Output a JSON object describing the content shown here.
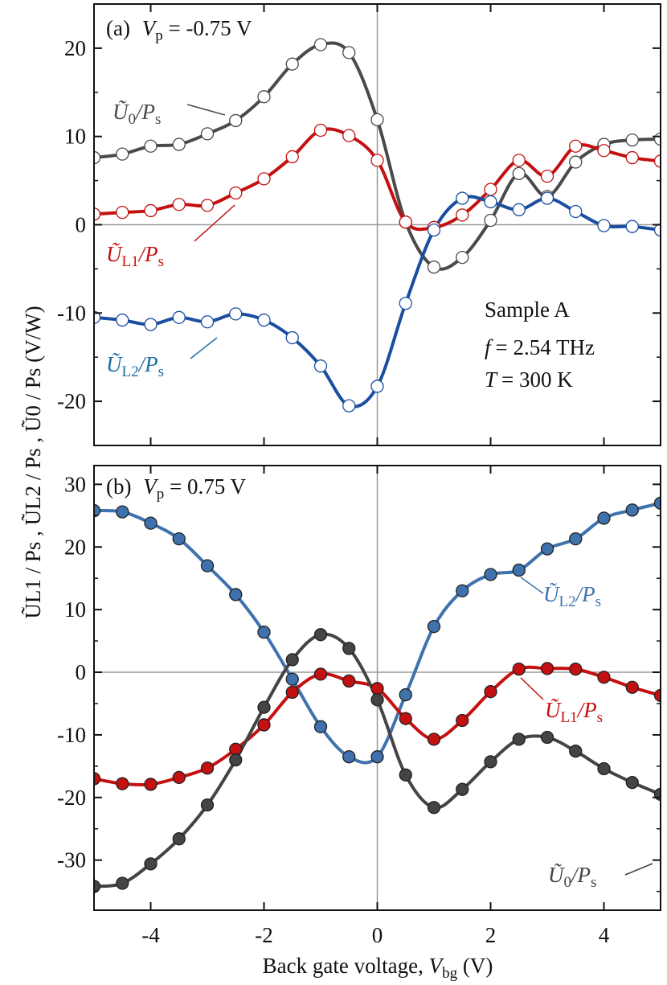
{
  "chart_data": [
    {
      "type": "line",
      "panel_label": "(a)",
      "title_var": "V",
      "title_sub": "p",
      "title_value": " = -0.75 V",
      "xlim": [
        -5,
        5
      ],
      "ylim": [
        -25,
        25
      ],
      "xticks": [
        -4,
        -2,
        0,
        2,
        4
      ],
      "yticks": [
        -20,
        -10,
        0,
        10,
        20
      ],
      "ytick_labels": [
        "-20",
        "-10",
        "0",
        "10",
        "20"
      ],
      "marker_fill": "#ffffff",
      "annotation_lines": [
        "Sample A",
        "= 2.54 THz",
        "= 300 K"
      ],
      "annotation_vars": [
        "",
        "f",
        "T"
      ],
      "series": [
        {
          "name": "Ũ0/Ps",
          "label_main": "Ũ",
          "label_sub": "0",
          "label_den": "/P",
          "label_den_sub": "s",
          "color": "#4a4a4a",
          "x": [
            -5,
            -4.5,
            -4,
            -3.5,
            -3,
            -2.5,
            -2,
            -1.5,
            -1,
            -0.5,
            0,
            0.5,
            1,
            1.5,
            2,
            2.5,
            3,
            3.5,
            4,
            4.5,
            5
          ],
          "y": [
            7.6,
            8.0,
            8.9,
            9.1,
            10.3,
            11.8,
            14.5,
            18.2,
            20.4,
            19.5,
            11.9,
            0.3,
            -4.8,
            -3.7,
            0.5,
            5.8,
            3.2,
            7.1,
            9.1,
            9.6,
            9.7
          ]
        },
        {
          "name": "ŨL1/Ps",
          "label_main": "Ũ",
          "label_sub": "L1",
          "label_den": "/P",
          "label_den_sub": "s",
          "color": "#c41010",
          "x": [
            -5,
            -4.5,
            -4,
            -3.5,
            -3,
            -2.5,
            -2,
            -1.5,
            -1,
            -0.5,
            0,
            0.5,
            1,
            1.5,
            2,
            2.5,
            3,
            3.5,
            4,
            4.5,
            5
          ],
          "y": [
            1.2,
            1.4,
            1.6,
            2.3,
            2.2,
            3.6,
            5.2,
            7.7,
            10.7,
            10.1,
            7.3,
            0.3,
            -0.3,
            1.1,
            4.0,
            7.3,
            5.5,
            8.9,
            8.4,
            7.6,
            7.2
          ]
        },
        {
          "name": "ŨL2/Ps",
          "label_main": "Ũ",
          "label_sub": "L2",
          "label_den": "/P",
          "label_den_sub": "s",
          "color": "#1a4ea0",
          "x": [
            -5,
            -4.5,
            -4,
            -3.5,
            -3,
            -2.5,
            -2,
            -1.5,
            -1,
            -0.5,
            0,
            0.5,
            1,
            1.5,
            2,
            2.5,
            3,
            3.5,
            4,
            4.5,
            5
          ],
          "y": [
            -10.5,
            -10.8,
            -11.3,
            -10.5,
            -11.0,
            -10.1,
            -10.8,
            -12.8,
            -16.0,
            -20.5,
            -18.3,
            -8.9,
            -0.6,
            3.0,
            2.6,
            1.7,
            3.0,
            1.5,
            -0.1,
            -0.2,
            -0.6
          ]
        }
      ]
    },
    {
      "type": "line",
      "panel_label": "(b)",
      "title_var": "V",
      "title_sub": "p",
      "title_value": " = 0.75 V",
      "xlim": [
        -5,
        5
      ],
      "ylim": [
        -38,
        33
      ],
      "xticks": [
        -4,
        -2,
        0,
        2,
        4
      ],
      "xtick_labels": [
        "-4",
        "-2",
        "0",
        "2",
        "4"
      ],
      "yticks": [
        -30,
        -20,
        -10,
        0,
        10,
        20,
        30
      ],
      "ytick_labels": [
        "-30",
        "-20",
        "-10",
        "0",
        "10",
        "20",
        "30"
      ],
      "marker_fill": "series",
      "series": [
        {
          "name": "ŨL2/Ps",
          "label_main": "Ũ",
          "label_sub": "L2",
          "label_den": "/P",
          "label_den_sub": "s",
          "color": "#3f72ad",
          "x": [
            -5,
            -4.5,
            -4,
            -3.5,
            -3,
            -2.5,
            -2,
            -1.5,
            -1,
            -0.5,
            0,
            0.5,
            1,
            1.5,
            2,
            2.5,
            3,
            3.5,
            4,
            4.5,
            5
          ],
          "y": [
            25.8,
            25.6,
            23.8,
            21.3,
            17.0,
            12.4,
            6.4,
            -1.1,
            -8.7,
            -13.5,
            -13.5,
            -3.6,
            7.3,
            13.0,
            15.6,
            16.3,
            19.7,
            21.3,
            24.6,
            25.9,
            27.0
          ]
        },
        {
          "name": "ŨL1/Ps",
          "label_main": "Ũ",
          "label_sub": "L1",
          "label_den": "/P",
          "label_den_sub": "s",
          "color": "#c41010",
          "x": [
            -5,
            -4.5,
            -4,
            -3.5,
            -3,
            -2.5,
            -2,
            -1.5,
            -1,
            -0.5,
            0,
            0.5,
            1,
            1.5,
            2,
            2.5,
            3,
            3.5,
            4,
            4.5,
            5
          ],
          "y": [
            -17.0,
            -17.8,
            -17.9,
            -16.8,
            -15.3,
            -12.3,
            -8.4,
            -3.2,
            -0.3,
            -1.4,
            -2.6,
            -7.4,
            -10.7,
            -7.7,
            -3.1,
            0.5,
            0.6,
            0.5,
            -0.8,
            -2.4,
            -3.7
          ]
        },
        {
          "name": "Ũ0/Ps",
          "label_main": "Ũ",
          "label_sub": "0",
          "label_den": "/P",
          "label_den_sub": "s",
          "color": "#444444",
          "x": [
            -5,
            -4.5,
            -4,
            -3.5,
            -3,
            -2.5,
            -2,
            -1.5,
            -1,
            -0.5,
            0,
            0.5,
            1,
            1.5,
            2,
            2.5,
            3,
            3.5,
            4,
            4.5,
            5
          ],
          "y": [
            -34.2,
            -33.7,
            -30.6,
            -26.6,
            -21.2,
            -14.0,
            -5.6,
            2.0,
            6.0,
            3.8,
            -4.4,
            -16.4,
            -21.6,
            -18.7,
            -14.3,
            -10.7,
            -10.4,
            -12.6,
            -15.4,
            -17.6,
            -19.5
          ]
        }
      ]
    }
  ],
  "axes": {
    "xlabel_text": "Back gate voltage, ",
    "xlabel_var": "V",
    "xlabel_sub": "bg",
    "xlabel_unit": " (V)",
    "ylabel_text": "ŨL1 / Ps , ŨL2 / Ps , Ũ0 / Ps   (V/W)"
  }
}
